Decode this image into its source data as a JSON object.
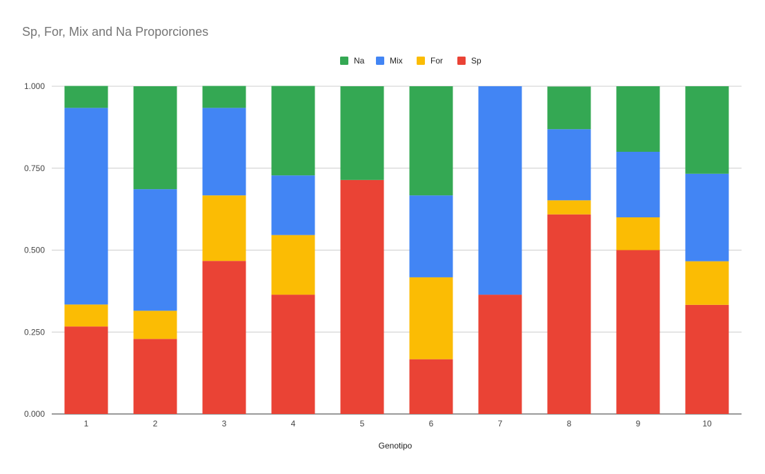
{
  "chart_data": {
    "type": "bar",
    "stacked": true,
    "title": "Sp, For, Mix and Na Proporciones",
    "xlabel": "Genotipo",
    "ylabel": "",
    "categories": [
      "1",
      "2",
      "3",
      "4",
      "5",
      "6",
      "7",
      "8",
      "9",
      "10"
    ],
    "ylim": [
      0,
      1
    ],
    "yticks": [
      "0.000",
      "0.250",
      "0.500",
      "0.750",
      "1.000"
    ],
    "yticks_values": [
      0,
      0.25,
      0.5,
      0.75,
      1.0
    ],
    "grid": true,
    "legend_position": "top",
    "legend_order": [
      "Na",
      "Mix",
      "For",
      "Sp"
    ],
    "series": [
      {
        "name": "Sp",
        "color": "#ea4335",
        "values": [
          0.267,
          0.229,
          0.467,
          0.364,
          0.714,
          0.167,
          0.364,
          0.609,
          0.5,
          0.333
        ]
      },
      {
        "name": "For",
        "color": "#fbbc04",
        "values": [
          0.067,
          0.086,
          0.2,
          0.182,
          0.0,
          0.25,
          0.0,
          0.043,
          0.1,
          0.133
        ]
      },
      {
        "name": "Mix",
        "color": "#4285f4",
        "values": [
          0.6,
          0.371,
          0.267,
          0.182,
          0.0,
          0.25,
          0.636,
          0.217,
          0.2,
          0.267
        ]
      },
      {
        "name": "Na",
        "color": "#34a853",
        "values": [
          0.067,
          0.314,
          0.067,
          0.273,
          0.286,
          0.333,
          0.0,
          0.13,
          0.2,
          0.267
        ]
      }
    ]
  }
}
